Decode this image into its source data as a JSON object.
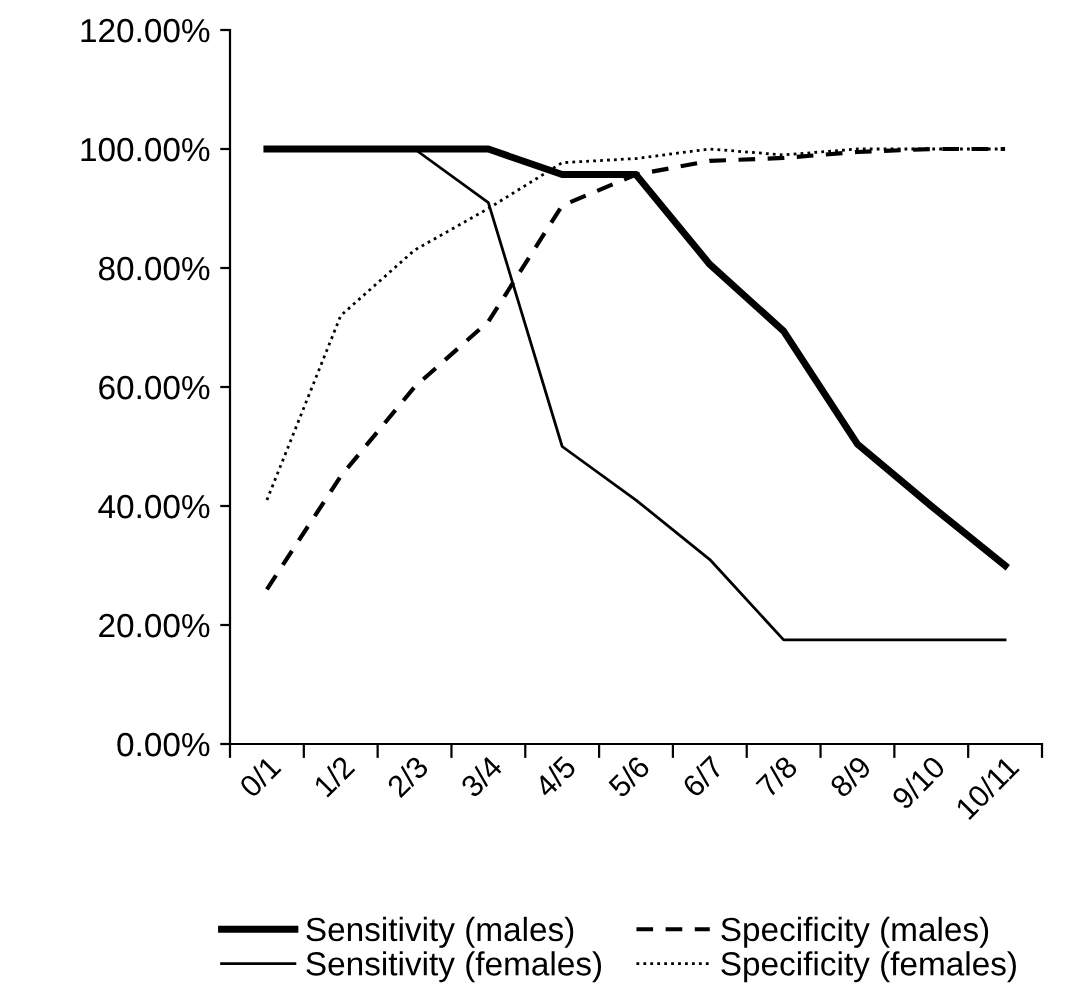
{
  "chart_data": {
    "type": "line",
    "categories": [
      "0/1",
      "1/2",
      "2/3",
      "3/4",
      "4/5",
      "5/6",
      "6/7",
      "7/8",
      "8/9",
      "9/10",
      "10/11"
    ],
    "series": [
      {
        "name": "Sensitivity (males)",
        "color": "#000000",
        "line_style": "solid",
        "values": [
          100,
          100,
          100,
          100,
          95.7,
          95.7,
          80.6,
          69.4,
          50.4,
          40,
          30
        ]
      },
      {
        "name": "Specificity (males)",
        "color": "#000000",
        "line_style": "dashed",
        "values": [
          26,
          45,
          60,
          71,
          90.5,
          95.7,
          98,
          98.5,
          99.5,
          100,
          100
        ]
      },
      {
        "name": "Sensitivity (females)",
        "color": "#000000",
        "line_style": "solid",
        "values": [
          100,
          100,
          100,
          91,
          50,
          41,
          31,
          17.5,
          17.5,
          17.5,
          17.5
        ]
      },
      {
        "name": "Specificity (females)",
        "color": "#000000",
        "line_style": "dotted",
        "values": [
          41,
          72,
          83,
          90,
          97.7,
          98.4,
          100,
          99,
          100,
          100,
          100
        ]
      }
    ],
    "ylim": [
      0,
      120
    ],
    "yticks": [
      {
        "value": 0,
        "label": "0.00%"
      },
      {
        "value": 20,
        "label": "20.00%"
      },
      {
        "value": 40,
        "label": "40.00%"
      },
      {
        "value": 60,
        "label": "60.00%"
      },
      {
        "value": 80,
        "label": "80.00%"
      },
      {
        "value": 100,
        "label": "100.00%"
      },
      {
        "value": 120,
        "label": "120.00%"
      }
    ],
    "grid": false,
    "legend": "bottom",
    "marker": "none"
  }
}
